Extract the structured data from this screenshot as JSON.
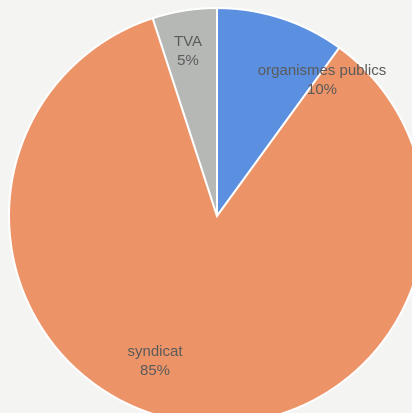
{
  "chart_data": {
    "type": "pie",
    "start_angle_deg": 0,
    "direction": "clockwise",
    "categories": [
      "organismes publics",
      "syndicat",
      "TVA"
    ],
    "values": [
      10,
      85,
      5
    ],
    "value_labels": [
      "10%",
      "85%",
      "5%"
    ],
    "colors": [
      "#5b8fe0",
      "#ec9468",
      "#b6b8b6"
    ],
    "label_color": "#5a5a5a",
    "title": ""
  }
}
